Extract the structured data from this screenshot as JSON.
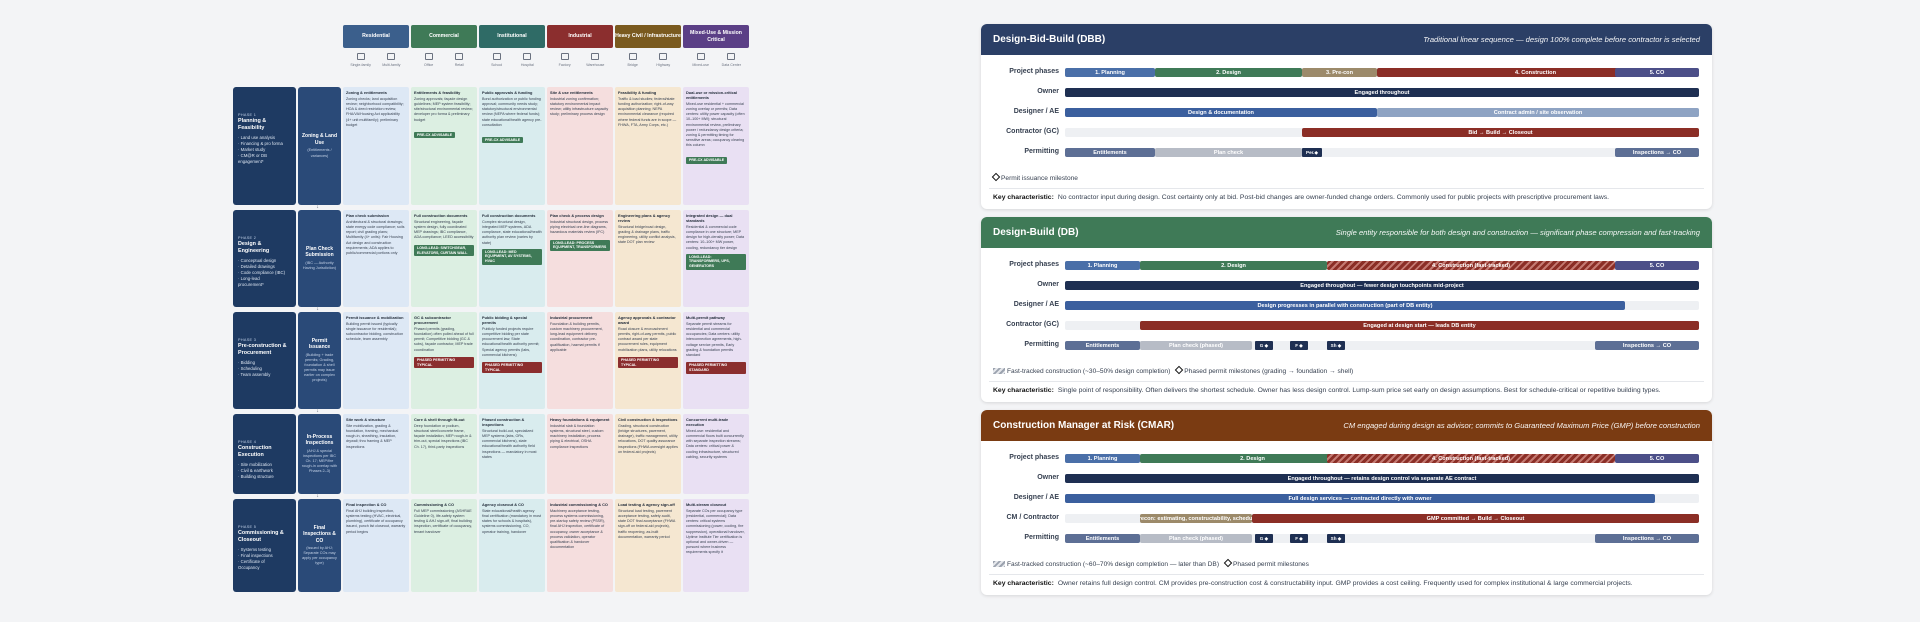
{
  "matrix": {
    "columns": [
      {
        "label": "Residential",
        "color": "#3b5f8c",
        "icons": [
          {
            "name": "single-family-icon",
            "label": "Single-family"
          },
          {
            "name": "multi-family-icon",
            "label": "Multi-family"
          }
        ]
      },
      {
        "label": "Commercial",
        "color": "#3f7a57",
        "icons": [
          {
            "name": "office-icon",
            "label": "Office"
          },
          {
            "name": "retail-icon",
            "label": "Retail"
          }
        ]
      },
      {
        "label": "Institutional",
        "color": "#2f6b66",
        "icons": [
          {
            "name": "school-icon",
            "label": "School"
          },
          {
            "name": "hospital-icon",
            "label": "Hospital"
          }
        ]
      },
      {
        "label": "Industrial",
        "color": "#8b2e2e",
        "icons": [
          {
            "name": "factory-icon",
            "label": "Factory"
          },
          {
            "name": "warehouse-icon",
            "label": "Warehouse"
          }
        ]
      },
      {
        "label": "Heavy Civil / Infrastructure",
        "color": "#7a5a1f",
        "icons": [
          {
            "name": "bridge-icon",
            "label": "Bridge"
          },
          {
            "name": "highway-icon",
            "label": "Highway"
          }
        ]
      },
      {
        "label": "Mixed-Use & Mission Critical",
        "color": "#5b3f86",
        "icons": [
          {
            "name": "mixed-use-icon",
            "label": "Mixed-use"
          },
          {
            "name": "data-center-icon",
            "label": "Data Center"
          }
        ]
      }
    ],
    "cell_colors": [
      "#dde8f5",
      "#dcefe2",
      "#d9ecee",
      "#f5dede",
      "#f5e7d1",
      "#e9e0f3"
    ],
    "tag_colors": [
      "#3f7a57",
      "#3f7a57",
      "#8b2e2e",
      "#8b2e2e",
      "#2b3f66"
    ],
    "phases": [
      {
        "num": "PHASE 1",
        "title": "Planning & Feasibility",
        "items": [
          "· Land use analysis",
          "· Financing & pro forma",
          "· Market study",
          "· CM@R or DB",
          "  engagement*"
        ],
        "gate_title": "Zoning & Land Use",
        "gate_sub": "(Entitlements / variances)",
        "cells": [
          {
            "t": "Zoning & entitlements",
            "b": "Zoning checks; land acquisition review; neighborhood compatibility; HOA & deed restriction review; FHA/VA/Housing Act applicability (4+ unit multifamily); preliminary budget",
            "tag": ""
          },
          {
            "t": "Entitlements & feasibility",
            "b": "Zoning approvals; façade design guidelines; MEP system feasibility; site/structural environmental review; developer pro forma & preliminary budget",
            "tag": "PRE-CX ADVISABLE"
          },
          {
            "t": "Public approvals & funding",
            "b": "Bond authorization or public funding approval; community needs study; statutory/structural environmental review (NEPA where federal funds); state educational/health agency pre-consultation",
            "tag": "PRE-CX ADVISABLE"
          },
          {
            "t": "Site & use entitlements",
            "b": "Industrial zoning confirmation; statutory environmental impact review; utility infrastructure capacity study; preliminary process design",
            "tag": ""
          },
          {
            "t": "Feasibility & funding",
            "b": "Traffic & load studies; federal/state funding authorization; right-of-way acquisition planning; NEPA environmental clearance (required where federal funds are in scope — FHWA, FTA, Army Corps, etc.)",
            "tag": ""
          },
          {
            "t": "Dual-use or mission-critical entitlements",
            "b": "Mixed-use residential + commercial zoning overlay or permits; Data centers: utility power capacity (often 10–100+ MW); structural environmental review, preliminary power / redundancy design criteria; zoning & permitting timing for sensitive areas; occupancy clearing this column",
            "tag": "PRE-CX ADVISABLE"
          }
        ]
      },
      {
        "num": "PHASE 2",
        "title": "Design & Engineering",
        "items": [
          "· Conceptual design",
          "· Detailed drawings",
          "· Code compliance (IBC)",
          "· Long-lead",
          "  procurement*"
        ],
        "gate_title": "Plan Check Submission",
        "gate_sub": "(IBC — Authority Having Jurisdiction)",
        "cells": [
          {
            "t": "Plan check submission",
            "b": "Architectural & structural drawings; state energy code compliance; soils report; civil grading plans; Multifamily (4+ units): Fair Housing Act design and construction requirements; ADA applies to public/commercial portions only",
            "tag": ""
          },
          {
            "t": "Full construction documents",
            "b": "Structural engineering, façade system design, fully coordinated MEP drawings; IBC compliance, ADA compliance; LEED accessibility",
            "tag": "LONG-LEAD: SWITCHGEAR, ELEVATORS, CURTAIN WALL"
          },
          {
            "t": "Full construction documents",
            "b": "Complex structural design, integrated MEP systems, ADA compliance, state educational/health authority plan review (varies by state)",
            "tag": "LONG-LEAD: MED EQUIPMENT, AV SYSTEMS, HVAC"
          },
          {
            "t": "Plan check & process design",
            "b": "Industrial structural design, process piping electrical one-line diagrams, hazardous materials review (IFC)",
            "tag": "LONG-LEAD: PROCESS EQUIPMENT, TRANSFORMERS"
          },
          {
            "t": "Engineering plans & agency review",
            "b": "Structural bridge/road design, grading & drainage plans, traffic engineering, utility conflict analysis, state DOT plan review",
            "tag": ""
          },
          {
            "t": "Integrated design — dual standards",
            "b": "Residential & commercial code compliance in one structure; MEP design for high-density power; Data centers: 10–100+ MW power, cooling, redundancy tier design",
            "tag": "LONG-LEAD: TRANSFORMERS, UPS, GENERATORS"
          }
        ]
      },
      {
        "num": "PHASE 3",
        "title": "Pre-construction & Procurement",
        "items": [
          "· Bidding",
          "· Scheduling",
          "· Team assembly"
        ],
        "gate_title": "Permit Issuance",
        "gate_sub": "(Building + trade permits; Grading, foundation & shell permits may issue earlier on complex projects)",
        "cells": [
          {
            "t": "Permit issuance & mobilization",
            "b": "Building permit issued (typically single issuance for residential); subcontractor bidding, construction schedule, team assembly",
            "tag": ""
          },
          {
            "t": "GC & subcontractor procurement",
            "b": "Phased permits (grading, foundation) often pulled ahead of full permit; Competitive bidding (GC & subs), façade contractor, MEP trade coordination",
            "tag": "PHASED PERMITTING TYPICAL"
          },
          {
            "t": "Public bidding & special permits",
            "b": "Publicly funded projects require competitive bidding per state procurement law; State educational/health authority permit; Special agency permits (labs, commercial kitchens)",
            "tag": "PHASED PERMITTING TYPICAL"
          },
          {
            "t": "Industrial procurement",
            "b": "Foundation & building permits, custom machinery procurement, long-lead equipment delivery coordination, contractor pre-qualification, hazmat permits if applicable",
            "tag": ""
          },
          {
            "t": "Agency approvals & contractor award",
            "b": "Road closure & encroachment permits, right-of-way permits, public contract award per state procurement rules, equipment mobilization plans, utility relocations",
            "tag": "PHASED PERMITTING TYPICAL"
          },
          {
            "t": "Multi-permit pathway",
            "b": "Separate permit streams for residential and commercial occupancies; Data centers: utility interconnection agreements, high-voltage service permits, Early grading & foundation permits standard",
            "tag": "PHASED PERMITTING STANDARD"
          }
        ]
      },
      {
        "num": "PHASE 4",
        "title": "Construction Execution",
        "items": [
          "· Site mobilization",
          "· Civil & earthwork",
          "· Building structure"
        ],
        "gate_title": "In-Process Inspections",
        "gate_sub": "(AHJ & special inspections per IBC Ch. 17; MEP/fire rough-in overlap with Phases 2–3)",
        "cells": [
          {
            "t": "Site work & structure",
            "b": "Site mobilization, grading & foundation, framing, mechanical rough-in, sheathing, insulation, drywall; thru framing & MEP inspections",
            "tag": ""
          },
          {
            "t": "Core & shell through fit-out",
            "b": "Deep foundation or podium, structural steel/concrete frame, façade installation, MEP rough-in & trim-out, special inspections (IBC Ch. 17), third-party inspections",
            "tag": ""
          },
          {
            "t": "Phased construction & inspections",
            "b": "Structural build-out, specialized MEP systems (labs, ORs, commercial kitchens), state educational/health authority field inspections — mandatory in most states",
            "tag": ""
          },
          {
            "t": "Heavy foundations & equipment",
            "b": "Industrial slab & foundation systems, structural steel, custom machinery installation, process piping & electrical, OSHA compliance inspections",
            "tag": ""
          },
          {
            "t": "Civil construction & inspections",
            "b": "Grading, structural construction (bridge structures, pavement, drainage), traffic management, utility relocations, DOT quality assurance inspections (FHWA oversight applies on federal-aid projects)",
            "tag": ""
          },
          {
            "t": "Concurrent multi-trade execution",
            "b": "Mixed-use: residential and commercial floors built concurrently with separate inspection streams; Data centers: critical power & cooling infrastructure, structured cabling, security systems",
            "tag": ""
          }
        ]
      },
      {
        "num": "PHASE 5",
        "title": "Commissioning & Closeout",
        "items": [
          "· Systems testing",
          "· Final inspections",
          "· Certificate of",
          "  Occupancy"
        ],
        "gate_title": "Final Inspections & CO",
        "gate_sub": "(Issued by AHJ; Separate COs may apply per occupancy type)",
        "cells": [
          {
            "t": "Final inspection & CO",
            "b": "Final AHJ building inspection, systems testing (HVAC, electrical, plumbing), certificate of occupancy issued, punch list closeout, warranty period begins",
            "tag": ""
          },
          {
            "t": "Commissioning & CO",
            "b": "Full MEP commissioning (ASHRAE Guideline 0), life-safety system testing & AHJ sign-off, final building inspection, certificate of occupancy, tenant handover",
            "tag": ""
          },
          {
            "t": "Agency closeout & CO",
            "b": "State educational/health agency final certification (mandatory in most states for schools & hospitals), systems commissioning, CO, operator training, handover",
            "tag": ""
          },
          {
            "t": "Industrial commissioning & CO",
            "b": "Machinery acceptance testing, process systems commissioning, pre-startup safety review (PSSR), final AHJ inspection, certificate of occupancy, owner acceptance & process validation, operator qualification & handover documentation",
            "tag": ""
          },
          {
            "t": "Load testing & agency sign-off",
            "b": "Structural load testing, pavement acceptance testing, safety audit, state DOT final acceptance (FHWA sign-off on federal-aid projects), traffic reopening, as-built documentation, warranty period",
            "tag": ""
          },
          {
            "t": "Multi-stream closeout",
            "b": "Separate COs per occupancy type (residential, commercial); Data centers: critical systems commissioning (power, cooling, fire suppression), operational handover, Uptime Institute Tier certification is optional and owner-driven — pursued where business requirements specify it",
            "tag": ""
          }
        ]
      }
    ]
  },
  "ddb": {
    "title": "Design-Bid-Build (DBB)",
    "subtitle": "Traditional linear sequence — design 100% complete before contractor is selected",
    "header_color": "#2b3f66",
    "rows": {
      "phases": "Project phases",
      "owner": "Owner",
      "designer": "Designer / AE",
      "contractor": "Contractor (GC)",
      "permitting": "Permitting"
    },
    "bars": {
      "planning": "1. Planning",
      "design": "2. Design",
      "precon": "3. Pre-con",
      "construction": "4. Construction",
      "co": "5. CO",
      "owner": "Engaged throughout",
      "design_docs": "Design & documentation",
      "contract_admin": "Contract admin / site observation",
      "gc": "Bid → Build → Closeout",
      "entitlements": "Entitlements",
      "plan_check": "Plan check",
      "permit_ms": "Per.◆",
      "inspections": "Inspections → CO"
    },
    "legend_milestone": "Permit issuance milestone",
    "key_label": "Key characteristic:",
    "key_text": "No contractor input during design. Cost certainty only at bid. Post-bid changes are owner-funded change orders. Commonly used for public projects with prescriptive procurement laws."
  },
  "db": {
    "title": "Design-Build (DB)",
    "subtitle": "Single entity responsible for both design and construction — significant phase compression and fast-tracking",
    "header_color": "#3f7a57",
    "rows": {
      "phases": "Project phases",
      "owner": "Owner",
      "designer": "Designer / AE",
      "contractor": "Contractor (GC)",
      "permitting": "Permitting"
    },
    "bars": {
      "planning": "1. Planning",
      "design": "2. Design",
      "construction": "4. Construction (fast-tracked)",
      "co": "5. CO",
      "owner": "Engaged throughout — fewer design touchpoints mid-project",
      "designer": "Design progresses in parallel with construction (part of DB entity)",
      "gc": "Engaged at design start — leads DB entity",
      "entitlements": "Entitlements",
      "plan_check": "Plan check (phased)",
      "ms1": "G ◆",
      "ms2": "F ◆",
      "ms3": "Sh ◆",
      "inspections": "Inspections → CO"
    },
    "legend_hatch": "Fast-tracked construction (~30–50% design completion)",
    "legend_milestone": "Phased permit milestones (grading → foundation → shell)",
    "key_label": "Key characteristic:",
    "key_text": "Single point of responsibility. Often delivers the shortest schedule. Owner has less design control. Lump-sum price set early on design assumptions. Best for schedule-critical or repetitive building types."
  },
  "cmar": {
    "title": "Construction Manager at Risk (CMAR)",
    "subtitle": "CM engaged during design as advisor; commits to Guaranteed Maximum Price (GMP) before construction",
    "header_color": "#7a3b12",
    "rows": {
      "phases": "Project phases",
      "owner": "Owner",
      "designer": "Designer / AE",
      "cm": "CM / Contractor",
      "permitting": "Permitting"
    },
    "bars": {
      "planning": "1. Planning",
      "design": "2. Design",
      "construction": "4. Construction (fast-tracked)",
      "co": "5. CO",
      "owner": "Engaged throughout — retains design control via separate AE contract",
      "designer": "Full design services — contracted directly with owner",
      "precon": "Precon: estimating, constructability, schedule",
      "gmp": "GMP committed → Build → Closeout",
      "entitlements": "Entitlements",
      "plan_check": "Plan check (phased)",
      "ms1": "G ◆",
      "ms2": "F ◆",
      "ms3": "Sh ◆",
      "inspections": "Inspections → CO"
    },
    "legend_hatch": "Fast-tracked construction (~60–70% design completion — later than DB)",
    "legend_milestone": "Phased permit milestones",
    "key_label": "Key characteristic:",
    "key_text": "Owner retains full design control. CM provides pre-construction cost & constructability input. GMP provides a cost ceiling. Frequently used for complex institutional & large commercial projects."
  },
  "colors": {
    "planning": "#4a6fa8",
    "design": "#3f7a57",
    "precon": "#9c8a6a",
    "construction": "#8b2e26",
    "co": "#4c4f88",
    "owner": "#1e2f52",
    "designer": "#3b5f9e",
    "designer_light": "#8ea3c3",
    "permit_light": "#b7bcc6",
    "permit_mid": "#5d6f95"
  }
}
